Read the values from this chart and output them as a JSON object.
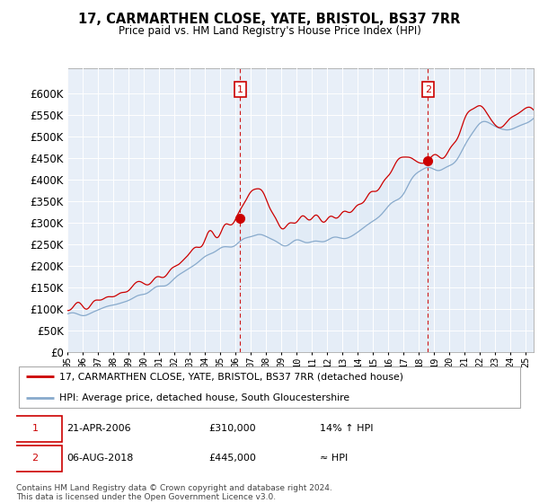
{
  "title": "17, CARMARTHEN CLOSE, YATE, BRISTOL, BS37 7RR",
  "subtitle": "Price paid vs. HM Land Registry's House Price Index (HPI)",
  "line1_label": "17, CARMARTHEN CLOSE, YATE, BRISTOL, BS37 7RR (detached house)",
  "line2_label": "HPI: Average price, detached house, South Gloucestershire",
  "line1_color": "#cc0000",
  "line2_color": "#88aacc",
  "fill_color": "#dde8f5",
  "background_color": "#e8eff8",
  "grid_color": "#ffffff",
  "sale1_x": 2006.29,
  "sale1_y": 310000,
  "sale1_note": "21-APR-2006",
  "sale1_price_str": "£310,000",
  "sale1_pct": "14% ↑ HPI",
  "sale2_x": 2018.58,
  "sale2_y": 445000,
  "sale2_note": "06-AUG-2018",
  "sale2_price_str": "£445,000",
  "sale2_pct": "≈ HPI",
  "ylim": [
    0,
    660000
  ],
  "yticks": [
    0,
    50000,
    100000,
    150000,
    200000,
    250000,
    300000,
    350000,
    400000,
    450000,
    500000,
    550000,
    600000
  ],
  "xlim_start": 1995.0,
  "xlim_end": 2025.5,
  "footer": "Contains HM Land Registry data © Crown copyright and database right 2024.\nThis data is licensed under the Open Government Licence v3.0.",
  "seed": 42
}
